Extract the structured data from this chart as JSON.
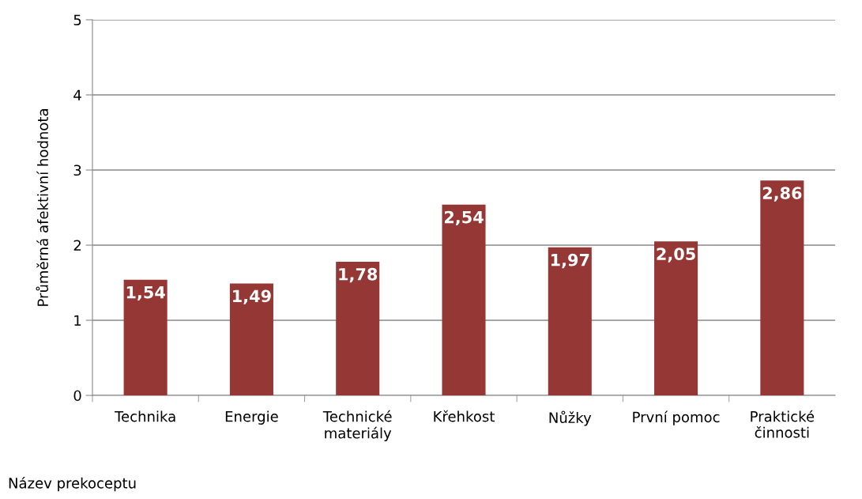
{
  "chart_data": {
    "type": "bar",
    "xlabel": "Název prekoceptu",
    "ylabel": "Průměrná afektivní hodnota",
    "categories": [
      "Technika",
      "Energie",
      "Technické\nmateriály",
      "Křehkost",
      "Nůžky",
      "První pomoc",
      "Praktické\nčinnosti"
    ],
    "values": [
      1.54,
      1.49,
      1.78,
      2.54,
      1.97,
      2.05,
      2.86
    ],
    "value_labels": [
      "1,54",
      "1,49",
      "1,78",
      "2,54",
      "1,97",
      "2,05",
      "2,86"
    ],
    "color": "#953735",
    "ylim": [
      0,
      5
    ],
    "yticks": [
      0,
      1,
      2,
      3,
      4,
      5
    ],
    "grid": "y",
    "legend": false
  }
}
